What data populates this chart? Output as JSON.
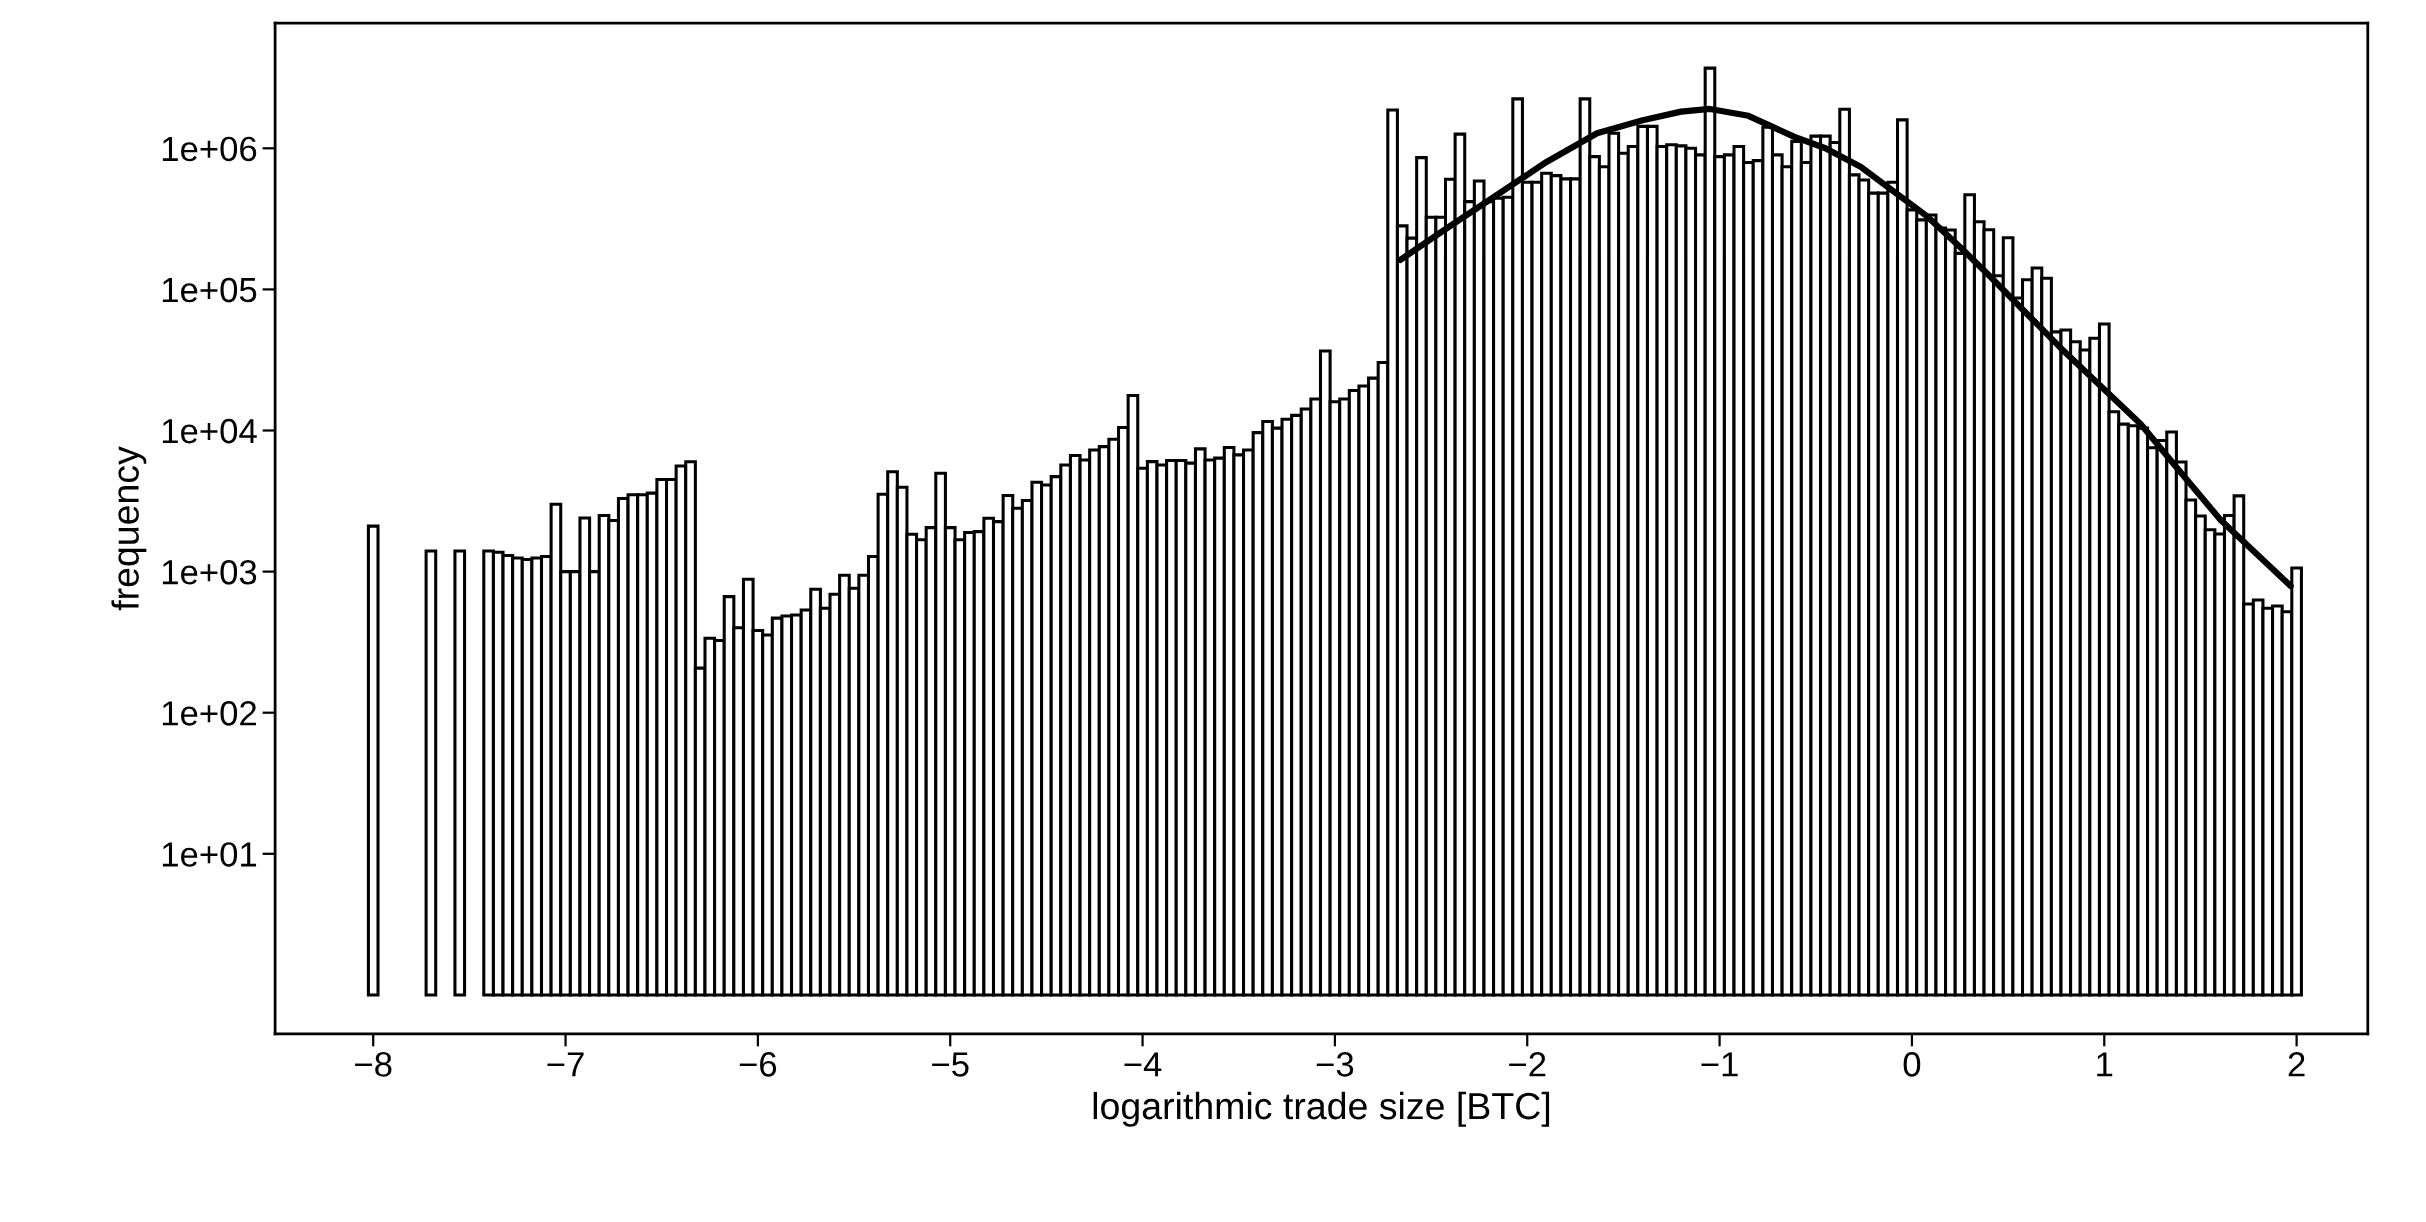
{
  "chart_data": {
    "type": "bar",
    "xlabel": "logarithmic trade size [BTC]",
    "ylabel": "frequency",
    "log": true,
    "grid": false,
    "xlim": [
      -8.51,
      2.37
    ],
    "ylim": [
      0.53,
      7700000
    ],
    "xticks": [
      {
        "value": -8,
        "label": "−8"
      },
      {
        "value": -7,
        "label": "−7"
      },
      {
        "value": -6,
        "label": "−6"
      },
      {
        "value": -5,
        "label": "−5"
      },
      {
        "value": -4,
        "label": "−4"
      },
      {
        "value": -3,
        "label": "−3"
      },
      {
        "value": -2,
        "label": "−2"
      },
      {
        "value": -1,
        "label": "−1"
      },
      0,
      1,
      2
    ],
    "yticks": [
      {
        "value": 10,
        "label": "1e+01"
      },
      {
        "value": 100,
        "label": "1e+02"
      },
      {
        "value": 1000,
        "label": "1e+03"
      },
      {
        "value": 10000,
        "label": "1e+04"
      },
      {
        "value": 100000,
        "label": "1e+05"
      },
      {
        "value": 1000000,
        "label": "1e+06"
      }
    ],
    "color": "#ffffff",
    "base": [
      1,
      1,
      1,
      1,
      1,
      1,
      1,
      1,
      1,
      1,
      1,
      1,
      1,
      1,
      1,
      1,
      1,
      1,
      1,
      1,
      1,
      1,
      1,
      1,
      1,
      1,
      1,
      1,
      1,
      1,
      1,
      1,
      1,
      1,
      1,
      1,
      1,
      1,
      1,
      1,
      1,
      1,
      1,
      1,
      1,
      1,
      1,
      1,
      1,
      1,
      1,
      1,
      1,
      1,
      1,
      1,
      1,
      1,
      1,
      1,
      1,
      1,
      1,
      1,
      1,
      1,
      1,
      1,
      1,
      1,
      1,
      1,
      1,
      1,
      1,
      1,
      1,
      1,
      1,
      1,
      1,
      1,
      1,
      1,
      1,
      1,
      1,
      1,
      1,
      1,
      1,
      1,
      1,
      1,
      1,
      1,
      1,
      1,
      1,
      1,
      1,
      1,
      1,
      1,
      1,
      1,
      1,
      1,
      1,
      1,
      1,
      1,
      1,
      1,
      1,
      1,
      1,
      1,
      1,
      1,
      1,
      1,
      1,
      1,
      1,
      1,
      1,
      1,
      1,
      1,
      1,
      1,
      1,
      1,
      1,
      1,
      1,
      1,
      1,
      1,
      1,
      1,
      1,
      1,
      1,
      1,
      1,
      1,
      1,
      1,
      1,
      1,
      1,
      1,
      1,
      1,
      1,
      1,
      1,
      1,
      1,
      1,
      1,
      1,
      1,
      1,
      1,
      1,
      1,
      1,
      1,
      1,
      1,
      1,
      1,
      1,
      1,
      1,
      1,
      1,
      1,
      1,
      1,
      1,
      1,
      1,
      1,
      1,
      1,
      1,
      1,
      1
    ],
    "x": [
      -8,
      -7.7,
      -7.55,
      -7.4,
      -7.35,
      -7.3,
      -7.25,
      -7.2,
      -7.15,
      -7.1,
      -7.05,
      -7,
      -6.95,
      -6.9,
      -6.85,
      -6.8,
      -6.75,
      -6.7,
      -6.65,
      -6.6,
      -6.55,
      -6.5,
      -6.45,
      -6.4,
      -6.35,
      -6.3,
      -6.25,
      -6.2,
      -6.15,
      -6.1,
      -6.05,
      -6,
      -5.95,
      -5.9,
      -5.85,
      -5.8,
      -5.75,
      -5.7,
      -5.65,
      -5.6,
      -5.55,
      -5.5,
      -5.45,
      -5.4,
      -5.35,
      -5.3,
      -5.25,
      -5.2,
      -5.15,
      -5.1,
      -5.05,
      -5,
      -4.95,
      -4.9,
      -4.85,
      -4.8,
      -4.75,
      -4.7,
      -4.65,
      -4.6,
      -4.55,
      -4.5,
      -4.45,
      -4.4,
      -4.35,
      -4.3,
      -4.25,
      -4.2,
      -4.15,
      -4.1,
      -4.05,
      -4,
      -3.95,
      -3.9,
      -3.85,
      -3.8,
      -3.75,
      -3.7,
      -3.65,
      -3.6,
      -3.55,
      -3.5,
      -3.45,
      -3.4,
      -3.35,
      -3.3,
      -3.25,
      -3.2,
      -3.15,
      -3.1,
      -3.05,
      -3,
      -2.95,
      -2.9,
      -2.85,
      -2.8,
      -2.75,
      -2.7,
      -2.65,
      -2.6,
      -2.55,
      -2.5,
      -2.45,
      -2.4,
      -2.35,
      -2.3,
      -2.25,
      -2.2,
      -2.15,
      -2.1,
      -2.05,
      -2,
      -1.95,
      -1.9,
      -1.85,
      -1.8,
      -1.75,
      -1.7,
      -1.65,
      -1.6,
      -1.55,
      -1.5,
      -1.45,
      -1.4,
      -1.35,
      -1.3,
      -1.25,
      -1.2,
      -1.15,
      -1.1,
      -1.05,
      -1,
      -0.95,
      -0.9,
      -0.85,
      -0.8,
      -0.75,
      -0.7,
      -0.65,
      -0.6,
      -0.55,
      -0.5,
      -0.45,
      -0.4,
      -0.35,
      -0.3,
      -0.25,
      -0.2,
      -0.15,
      -0.1,
      -0.05,
      0,
      0.05,
      0.1,
      0.15,
      0.2,
      0.25,
      0.3,
      0.35,
      0.4,
      0.45,
      0.5,
      0.55,
      0.6,
      0.65,
      0.7,
      0.75,
      0.8,
      0.85,
      0.9,
      0.95,
      1,
      1.05,
      1.1,
      1.15,
      1.2,
      1.25,
      1.3,
      1.35,
      1.4,
      1.45,
      1.5,
      1.55,
      1.6,
      1.65,
      1.7,
      1.75,
      1.8,
      1.85,
      1.9,
      1.95,
      2
    ],
    "values": [
      2100,
      1400,
      1400,
      1400,
      1370,
      1300,
      1250,
      1220,
      1250,
      1280,
      3000,
      1000,
      1000,
      2400,
      1000,
      2500,
      2300,
      3300,
      3500,
      3500,
      3600,
      4500,
      4500,
      5600,
      6000,
      207,
      337,
      325,
      665,
      400,
      883,
      382,
      355,
      468,
      485,
      493,
      535,
      750,
      550,
      690,
      943,
      763,
      943,
      1280,
      3530,
      5100,
      3960,
      1840,
      1680,
      2050,
      4980,
      2050,
      1680,
      1890,
      1920,
      2390,
      2260,
      3460,
      2810,
      3190,
      4300,
      4110,
      4710,
      5700,
      6640,
      6170,
      7280,
      7690,
      8670,
      10500,
      17700,
      5400,
      6020,
      5700,
      6120,
      6120,
      5870,
      7410,
      6170,
      6370,
      7570,
      6720,
      7280,
      9660,
      11600,
      10400,
      12000,
      12800,
      14200,
      16700,
      36600,
      16000,
      16700,
      19200,
      20700,
      23500,
      30300,
      1870000,
      282000,
      231000,
      859000,
      325000,
      325000,
      604000,
      1260000,
      419000,
      587000,
      419000,
      443000,
      450000,
      2240000,
      575000,
      575000,
      666000,
      640000,
      607000,
      607000,
      2240000,
      873000,
      741000,
      1280000,
      923000,
      1030000,
      1430000,
      1430000,
      1030000,
      1060000,
      1040000,
      1000000,
      898000,
      3700000,
      873000,
      898000,
      1030000,
      792000,
      818000,
      1410000,
      898000,
      741000,
      1120000,
      792000,
      1220000,
      1220000,
      1100000,
      1890000,
      648000,
      597000,
      481000,
      481000,
      575000,
      1590000,
      366000,
      311000,
      337000,
      272000,
      264000,
      180000,
      468000,
      302000,
      265000,
      125000,
      232000,
      87000,
      117000,
      142000,
      120000,
      50000,
      51600,
      42500,
      37200,
      45000,
      56900,
      13600,
      11100,
      10800,
      10400,
      7540,
      8500,
      9770,
      5980,
      3220,
      2480,
      1980,
      1850,
      2500,
      3440,
      590,
      630,
      550,
      570,
      520,
      1060
    ],
    "series": [
      {
        "type": "line",
        "color": "#000000",
        "x": [
          -2.66,
          -2.4,
          -2.157,
          -1.9,
          -1.637,
          -1.4,
          -1.2,
          -1.05,
          -0.85,
          -0.614,
          -0.45,
          -0.267,
          0.08,
          0.25,
          0.4,
          0.773,
          1.189,
          1.4,
          1.605,
          1.969
        ],
        "values": [
          162000,
          282000,
          468000,
          800000,
          1280000,
          1580000,
          1820000,
          1900000,
          1700000,
          1210000,
          1000000,
          741000,
          328000,
          200000,
          126000,
          38500,
          11100,
          5000,
          2320,
          790
        ]
      }
    ]
  }
}
